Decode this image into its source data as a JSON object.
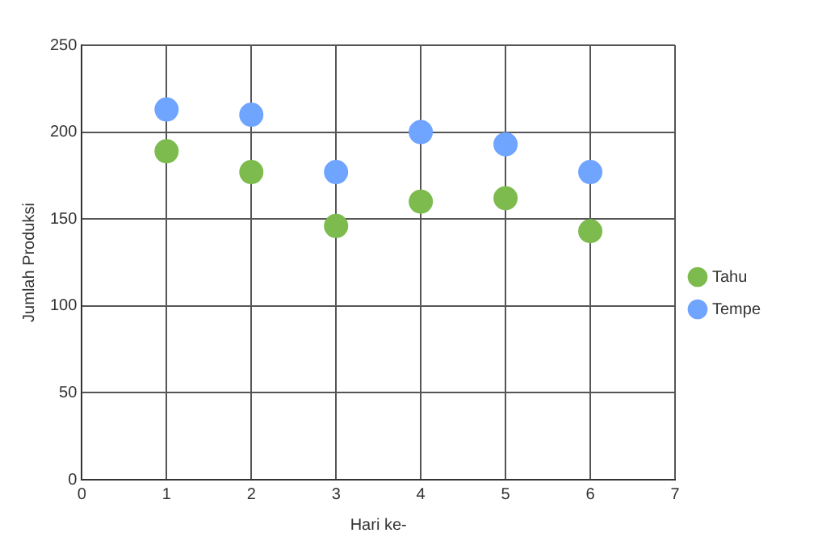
{
  "chart_data": {
    "type": "scatter",
    "xlabel": "Hari ke-",
    "ylabel": "Jumlah Produksi",
    "x": [
      1,
      2,
      3,
      4,
      5,
      6
    ],
    "series": [
      {
        "name": "Tahu",
        "color": "#7dbb4e",
        "values": [
          189,
          177,
          146,
          160,
          162,
          143
        ]
      },
      {
        "name": "Tempe",
        "color": "#6fa4ff",
        "values": [
          213,
          210,
          177,
          200,
          193,
          177
        ]
      }
    ],
    "xlim": [
      0,
      7
    ],
    "xticks": [
      0,
      1,
      2,
      3,
      4,
      5,
      6,
      7
    ],
    "ylim": [
      0,
      250
    ],
    "yticks": [
      0,
      50,
      100,
      150,
      200,
      250
    ],
    "grid": true,
    "legend": "right",
    "marker": "circle"
  }
}
